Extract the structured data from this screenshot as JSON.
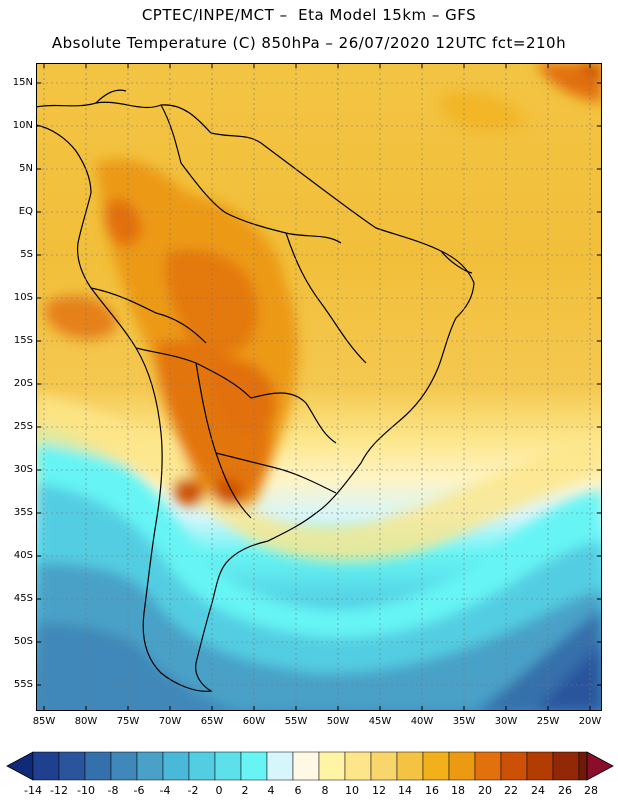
{
  "header": {
    "title_line1": "CPTEC/INPE/MCT –  Eta Model 15km – GFS",
    "title_line2": "Absolute Temperature (C) 850hPa – 26/07/2020 12UTC fct=210h"
  },
  "axes": {
    "lat_labels": [
      "15N",
      "10N",
      "5N",
      "EQ",
      "5S",
      "10S",
      "15S",
      "20S",
      "25S",
      "30S",
      "35S",
      "40S",
      "45S",
      "50S",
      "55S"
    ],
    "lon_labels": [
      "85W",
      "80W",
      "75W",
      "70W",
      "65W",
      "60W",
      "55W",
      "50W",
      "45W",
      "40W",
      "35W",
      "30W",
      "25W",
      "20W"
    ],
    "lon_range": [
      -86,
      -19
    ],
    "lat_range": [
      -58,
      17
    ]
  },
  "colorbar": {
    "ticks": [
      "-14",
      "-12",
      "-10",
      "-8",
      "-6",
      "-4",
      "-2",
      "0",
      "2",
      "4",
      "6",
      "8",
      "10",
      "12",
      "14",
      "16",
      "18",
      "20",
      "22",
      "24",
      "26",
      "28"
    ],
    "colors": [
      "#1f3f8f",
      "#2a559d",
      "#3470ab",
      "#3f88b9",
      "#4aa1c8",
      "#4ab8d8",
      "#52cde2",
      "#5ee0ea",
      "#66f4f4",
      "#d6f6fb",
      "#fff8e4",
      "#fff4a6",
      "#fde68a",
      "#f9d66c",
      "#f4c344",
      "#f2b01a",
      "#ec9a12",
      "#e2700c",
      "#cc5106",
      "#b23c02",
      "#922806",
      "#701a08"
    ],
    "under_color": "#102a78",
    "over_color": "#8a0e2a"
  }
}
